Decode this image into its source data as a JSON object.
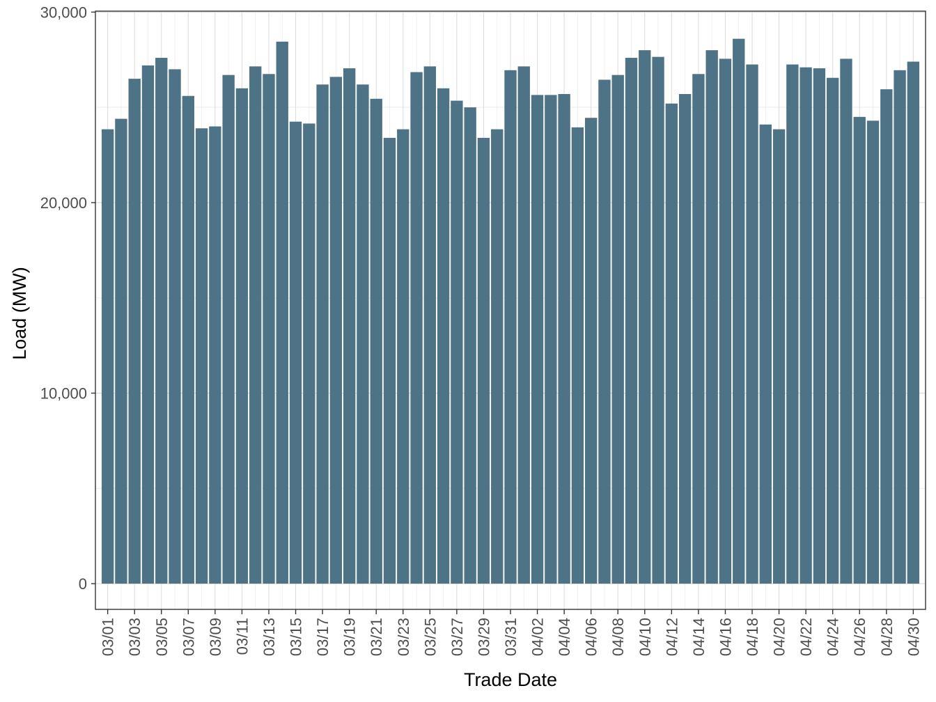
{
  "chart_data": {
    "type": "bar",
    "title": "",
    "xlabel": "Trade Date",
    "ylabel": "Load (MW)",
    "bar_color": "#4f7386",
    "grid": true,
    "ylim": [
      -1350,
      30050
    ],
    "y_ticks": [
      {
        "value": 0,
        "label": "0"
      },
      {
        "value": 10000,
        "label": "10,000"
      },
      {
        "value": 20000,
        "label": "20,000"
      },
      {
        "value": 30000,
        "label": "30,000"
      }
    ],
    "categories": [
      "03/01",
      "03/02",
      "03/03",
      "03/04",
      "03/05",
      "03/06",
      "03/07",
      "03/08",
      "03/09",
      "03/10",
      "03/11",
      "03/12",
      "03/13",
      "03/14",
      "03/15",
      "03/16",
      "03/17",
      "03/18",
      "03/19",
      "03/20",
      "03/21",
      "03/22",
      "03/23",
      "03/24",
      "03/25",
      "03/26",
      "03/27",
      "03/28",
      "03/29",
      "03/30",
      "03/31",
      "04/01",
      "04/02",
      "04/03",
      "04/04",
      "04/05",
      "04/06",
      "04/07",
      "04/08",
      "04/09",
      "04/10",
      "04/11",
      "04/12",
      "04/13",
      "04/14",
      "04/15",
      "04/16",
      "04/17",
      "04/18",
      "04/19",
      "04/20",
      "04/21",
      "04/22",
      "04/23",
      "04/24",
      "04/25",
      "04/26",
      "04/27",
      "04/28",
      "04/29",
      "04/30"
    ],
    "tick_categories": [
      "03/01",
      "03/03",
      "03/05",
      "03/07",
      "03/09",
      "03/11",
      "03/13",
      "03/15",
      "03/17",
      "03/19",
      "03/21",
      "03/23",
      "03/25",
      "03/27",
      "03/29",
      "03/31",
      "04/02",
      "04/04",
      "04/06",
      "04/08",
      "04/10",
      "04/12",
      "04/14",
      "04/16",
      "04/18",
      "04/20",
      "04/22",
      "04/24",
      "04/26",
      "04/28",
      "04/30"
    ],
    "series": [
      {
        "values": [
          23850,
          24400,
          26500,
          27200,
          27600,
          27000,
          25600,
          23900,
          24000,
          26700,
          26000,
          27150,
          26750,
          28450,
          24250,
          24150,
          26200,
          26600,
          27050,
          26200,
          25450,
          23400,
          23850,
          26850,
          27150,
          26000,
          25350,
          25000,
          23400,
          23850,
          26950,
          27150,
          25650,
          25650,
          25700,
          23950,
          24450,
          26450,
          26700,
          27600,
          28000,
          27650,
          25200,
          25700,
          26750,
          28000,
          27550,
          28600,
          27250,
          24100,
          23850,
          27250,
          27100,
          27050,
          26550,
          27550,
          24500,
          24300,
          25950,
          26950,
          27400
        ]
      }
    ]
  }
}
